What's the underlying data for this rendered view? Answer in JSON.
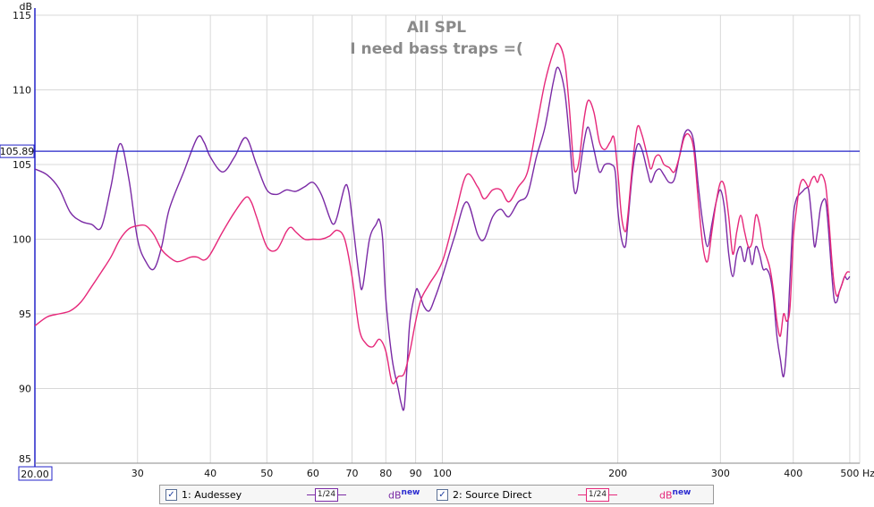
{
  "chart_data": {
    "type": "line",
    "title": "All SPL",
    "subtitle": "I need bass traps =(",
    "ylabel": "dB",
    "xlabel": "Hz",
    "x_scale": "log",
    "xlim": [
      20,
      520
    ],
    "ylim": [
      85,
      115
    ],
    "x_ticks": [
      30,
      40,
      50,
      60,
      70,
      80,
      90,
      100,
      200,
      300,
      400,
      500
    ],
    "y_ticks": [
      85,
      90,
      95,
      100,
      105,
      110,
      115
    ],
    "x_start_label": "20.00",
    "cursor_value": 105.89,
    "cursor_label": "105.89",
    "grid": true,
    "colors": {
      "background": "#ffffff",
      "grid": "#d8d8d8",
      "cursor": "#2323c8",
      "axis": "#2323c8"
    },
    "series": [
      {
        "name": "1: Audessey",
        "color": "#7a2aa5",
        "points": [
          [
            20,
            104.7
          ],
          [
            21,
            104.3
          ],
          [
            22,
            103.4
          ],
          [
            23,
            101.8
          ],
          [
            24,
            101.2
          ],
          [
            25,
            101.0
          ],
          [
            26,
            100.8
          ],
          [
            27,
            103.5
          ],
          [
            28,
            106.4
          ],
          [
            29,
            104.0
          ],
          [
            30,
            100.0
          ],
          [
            31,
            98.5
          ],
          [
            32,
            98.0
          ],
          [
            33,
            99.5
          ],
          [
            34,
            102.0
          ],
          [
            36,
            104.5
          ],
          [
            38,
            106.8
          ],
          [
            39,
            106.5
          ],
          [
            40,
            105.5
          ],
          [
            42,
            104.5
          ],
          [
            44,
            105.5
          ],
          [
            46,
            106.8
          ],
          [
            48,
            105.0
          ],
          [
            50,
            103.3
          ],
          [
            52,
            103.0
          ],
          [
            54,
            103.3
          ],
          [
            56,
            103.2
          ],
          [
            58,
            103.5
          ],
          [
            60,
            103.8
          ],
          [
            62,
            103.0
          ],
          [
            64,
            101.5
          ],
          [
            65,
            101.0
          ],
          [
            66,
            101.5
          ],
          [
            68,
            103.5
          ],
          [
            69,
            103.3
          ],
          [
            70,
            101.5
          ],
          [
            72,
            97.5
          ],
          [
            73,
            96.8
          ],
          [
            75,
            100.0
          ],
          [
            77,
            101.0
          ],
          [
            78,
            101.3
          ],
          [
            79,
            100.0
          ],
          [
            80,
            96.0
          ],
          [
            82,
            92.0
          ],
          [
            84,
            90.0
          ],
          [
            85,
            89.0
          ],
          [
            86,
            88.7
          ],
          [
            87,
            91.5
          ],
          [
            88,
            94.5
          ],
          [
            90,
            96.5
          ],
          [
            91,
            96.5
          ],
          [
            93,
            95.5
          ],
          [
            95,
            95.2
          ],
          [
            97,
            96.0
          ],
          [
            100,
            97.5
          ],
          [
            105,
            100.2
          ],
          [
            110,
            102.5
          ],
          [
            115,
            100.3
          ],
          [
            118,
            100.0
          ],
          [
            122,
            101.5
          ],
          [
            126,
            102.0
          ],
          [
            130,
            101.5
          ],
          [
            135,
            102.5
          ],
          [
            140,
            103.0
          ],
          [
            145,
            105.5
          ],
          [
            150,
            107.5
          ],
          [
            155,
            110.5
          ],
          [
            158,
            111.5
          ],
          [
            162,
            110.0
          ],
          [
            165,
            107.0
          ],
          [
            168,
            103.5
          ],
          [
            170,
            103.2
          ],
          [
            172,
            104.5
          ],
          [
            175,
            106.5
          ],
          [
            178,
            107.5
          ],
          [
            182,
            106.0
          ],
          [
            186,
            104.5
          ],
          [
            190,
            105.0
          ],
          [
            195,
            105.0
          ],
          [
            198,
            104.5
          ],
          [
            200,
            102.0
          ],
          [
            203,
            100.0
          ],
          [
            206,
            99.5
          ],
          [
            208,
            101.0
          ],
          [
            212,
            104.5
          ],
          [
            216,
            106.3
          ],
          [
            220,
            106.0
          ],
          [
            225,
            104.5
          ],
          [
            228,
            103.8
          ],
          [
            232,
            104.5
          ],
          [
            236,
            104.7
          ],
          [
            240,
            104.3
          ],
          [
            245,
            103.8
          ],
          [
            250,
            104.0
          ],
          [
            255,
            105.5
          ],
          [
            260,
            107.0
          ],
          [
            265,
            107.3
          ],
          [
            270,
            106.5
          ],
          [
            275,
            103.5
          ],
          [
            280,
            101.0
          ],
          [
            285,
            99.5
          ],
          [
            290,
            101.0
          ],
          [
            295,
            102.5
          ],
          [
            300,
            103.3
          ],
          [
            305,
            102.0
          ],
          [
            310,
            99.0
          ],
          [
            315,
            97.5
          ],
          [
            320,
            99.0
          ],
          [
            325,
            99.5
          ],
          [
            330,
            98.5
          ],
          [
            335,
            99.5
          ],
          [
            340,
            98.3
          ],
          [
            345,
            99.5
          ],
          [
            350,
            99.0
          ],
          [
            355,
            98.0
          ],
          [
            360,
            98.0
          ],
          [
            365,
            97.5
          ],
          [
            370,
            96.0
          ],
          [
            375,
            93.5
          ],
          [
            380,
            92.0
          ],
          [
            385,
            90.8
          ],
          [
            390,
            93.0
          ],
          [
            395,
            97.5
          ],
          [
            400,
            101.5
          ],
          [
            405,
            102.7
          ],
          [
            410,
            103.0
          ],
          [
            415,
            103.2
          ],
          [
            420,
            103.4
          ],
          [
            425,
            103.3
          ],
          [
            430,
            101.5
          ],
          [
            435,
            99.5
          ],
          [
            440,
            100.5
          ],
          [
            445,
            102.0
          ],
          [
            450,
            102.6
          ],
          [
            455,
            102.5
          ],
          [
            460,
            100.5
          ],
          [
            465,
            98.0
          ],
          [
            470,
            96.0
          ],
          [
            475,
            95.8
          ],
          [
            480,
            96.5
          ],
          [
            485,
            97.0
          ],
          [
            490,
            97.5
          ],
          [
            495,
            97.3
          ],
          [
            500,
            97.5
          ]
        ]
      },
      {
        "name": "2: Source Direct",
        "color": "#e6287a",
        "points": [
          [
            20,
            94.2
          ],
          [
            21,
            94.8
          ],
          [
            22,
            95.0
          ],
          [
            23,
            95.2
          ],
          [
            24,
            95.8
          ],
          [
            25,
            96.8
          ],
          [
            26,
            97.8
          ],
          [
            27,
            98.8
          ],
          [
            28,
            100.0
          ],
          [
            29,
            100.7
          ],
          [
            30,
            100.9
          ],
          [
            31,
            100.9
          ],
          [
            32,
            100.3
          ],
          [
            33,
            99.3
          ],
          [
            34,
            98.8
          ],
          [
            35,
            98.5
          ],
          [
            36,
            98.6
          ],
          [
            37,
            98.8
          ],
          [
            38,
            98.8
          ],
          [
            39,
            98.6
          ],
          [
            40,
            99.0
          ],
          [
            42,
            100.5
          ],
          [
            44,
            101.8
          ],
          [
            46,
            102.8
          ],
          [
            47,
            102.5
          ],
          [
            48,
            101.5
          ],
          [
            50,
            99.5
          ],
          [
            52,
            99.3
          ],
          [
            54,
            100.5
          ],
          [
            55,
            100.8
          ],
          [
            56,
            100.5
          ],
          [
            58,
            100.0
          ],
          [
            60,
            100.0
          ],
          [
            62,
            100.0
          ],
          [
            64,
            100.2
          ],
          [
            66,
            100.6
          ],
          [
            68,
            100.0
          ],
          [
            70,
            97.5
          ],
          [
            72,
            94.0
          ],
          [
            74,
            93.0
          ],
          [
            76,
            92.8
          ],
          [
            78,
            93.3
          ],
          [
            80,
            92.5
          ],
          [
            82,
            90.4
          ],
          [
            84,
            90.8
          ],
          [
            86,
            91.0
          ],
          [
            88,
            92.5
          ],
          [
            90,
            94.5
          ],
          [
            92,
            96.0
          ],
          [
            95,
            97.0
          ],
          [
            100,
            98.5
          ],
          [
            105,
            101.5
          ],
          [
            110,
            104.3
          ],
          [
            115,
            103.5
          ],
          [
            118,
            102.7
          ],
          [
            122,
            103.3
          ],
          [
            126,
            103.3
          ],
          [
            130,
            102.5
          ],
          [
            135,
            103.5
          ],
          [
            140,
            104.5
          ],
          [
            145,
            107.5
          ],
          [
            150,
            110.5
          ],
          [
            155,
            112.5
          ],
          [
            158,
            113.1
          ],
          [
            162,
            112.0
          ],
          [
            165,
            109.0
          ],
          [
            168,
            105.0
          ],
          [
            170,
            104.6
          ],
          [
            172,
            105.5
          ],
          [
            175,
            108.0
          ],
          [
            178,
            109.3
          ],
          [
            182,
            108.5
          ],
          [
            186,
            106.5
          ],
          [
            190,
            106.0
          ],
          [
            194,
            106.5
          ],
          [
            197,
            106.8
          ],
          [
            200,
            104.5
          ],
          [
            203,
            101.5
          ],
          [
            206,
            100.5
          ],
          [
            208,
            101.5
          ],
          [
            212,
            105.0
          ],
          [
            216,
            107.5
          ],
          [
            220,
            107.0
          ],
          [
            225,
            105.5
          ],
          [
            228,
            104.7
          ],
          [
            232,
            105.5
          ],
          [
            236,
            105.6
          ],
          [
            240,
            105.0
          ],
          [
            245,
            104.8
          ],
          [
            250,
            104.5
          ],
          [
            255,
            105.5
          ],
          [
            260,
            106.8
          ],
          [
            265,
            107.0
          ],
          [
            270,
            106.0
          ],
          [
            275,
            102.5
          ],
          [
            280,
            99.5
          ],
          [
            285,
            98.5
          ],
          [
            290,
            100.5
          ],
          [
            295,
            102.5
          ],
          [
            300,
            103.8
          ],
          [
            305,
            103.5
          ],
          [
            310,
            101.5
          ],
          [
            315,
            99.0
          ],
          [
            320,
            100.5
          ],
          [
            325,
            101.6
          ],
          [
            330,
            100.5
          ],
          [
            335,
            99.5
          ],
          [
            340,
            99.8
          ],
          [
            345,
            101.6
          ],
          [
            350,
            101.0
          ],
          [
            355,
            99.5
          ],
          [
            360,
            98.8
          ],
          [
            365,
            98.0
          ],
          [
            370,
            96.5
          ],
          [
            375,
            94.5
          ],
          [
            380,
            93.5
          ],
          [
            385,
            95.0
          ],
          [
            390,
            94.5
          ],
          [
            395,
            95.5
          ],
          [
            400,
            100.0
          ],
          [
            405,
            102.0
          ],
          [
            410,
            103.5
          ],
          [
            415,
            104.0
          ],
          [
            420,
            103.8
          ],
          [
            425,
            103.5
          ],
          [
            430,
            104.0
          ],
          [
            435,
            104.2
          ],
          [
            440,
            103.8
          ],
          [
            445,
            104.3
          ],
          [
            450,
            104.2
          ],
          [
            455,
            103.5
          ],
          [
            460,
            101.5
          ],
          [
            465,
            99.0
          ],
          [
            470,
            97.0
          ],
          [
            475,
            96.2
          ],
          [
            480,
            96.5
          ],
          [
            485,
            97.0
          ],
          [
            490,
            97.5
          ],
          [
            495,
            97.8
          ],
          [
            500,
            97.8
          ]
        ]
      }
    ]
  },
  "legend": {
    "items": [
      {
        "label": "1: Audessey",
        "checked": true,
        "checkmark": "✓",
        "smoothing": "1/24",
        "db_label": "dB",
        "db_sup": "new",
        "color": "#7a2aa5"
      },
      {
        "label": "2: Source Direct",
        "checked": true,
        "checkmark": "✓",
        "smoothing": "1/24",
        "db_label": "dB",
        "db_sup": "new",
        "color": "#e6287a"
      }
    ]
  }
}
